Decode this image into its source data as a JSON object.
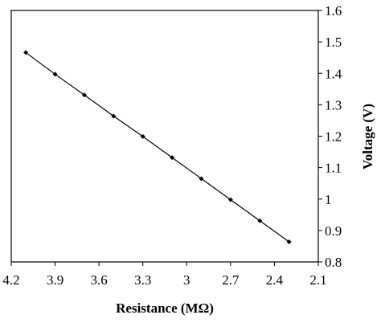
{
  "chart_data": {
    "type": "scatter",
    "title": "",
    "xlabel": "Resistance (MΩ)",
    "ylabel": "Voltage (V)",
    "xlim": [
      2.1,
      4.2
    ],
    "ylim": [
      0.8,
      1.6
    ],
    "x_reversed": true,
    "y_axis_position": "right",
    "grid": false,
    "legend": "none",
    "x_ticks": [
      "4.2",
      "3.9",
      "3.6",
      "3.3",
      "3",
      "2.7",
      "2.4",
      "2.1"
    ],
    "x_tick_values": [
      4.2,
      3.9,
      3.6,
      3.3,
      3.0,
      2.7,
      2.4,
      2.1
    ],
    "y_ticks": [
      "0.8",
      "0.9",
      "1",
      "1.1",
      "1.2",
      "1.3",
      "1.4",
      "1.5",
      "1.6"
    ],
    "y_tick_values": [
      0.8,
      0.9,
      1.0,
      1.1,
      1.2,
      1.3,
      1.4,
      1.5,
      1.6
    ],
    "series": [
      {
        "color": "#000000",
        "marker": "diamond",
        "line": "straight",
        "x": [
          4.1,
          3.9,
          3.7,
          3.5,
          3.3,
          3.1,
          2.9,
          2.7,
          2.5,
          2.3
        ],
        "y": [
          1.466,
          1.397,
          1.331,
          1.264,
          1.199,
          1.132,
          1.065,
          0.998,
          0.931,
          0.864
        ]
      }
    ]
  }
}
